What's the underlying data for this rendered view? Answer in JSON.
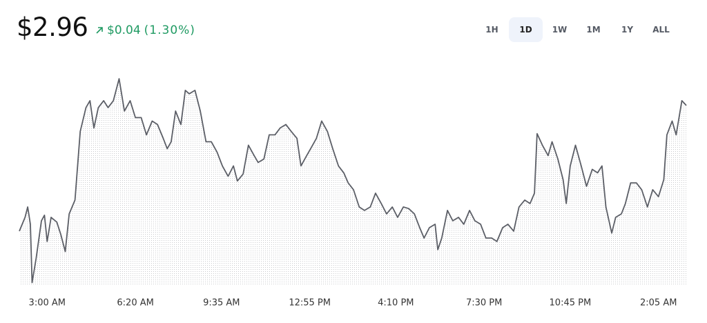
{
  "header": {
    "price": "$2.96",
    "change": "$0.04",
    "change_pct": "(1.30%)"
  },
  "range_tabs": {
    "options": [
      "1H",
      "1D",
      "1W",
      "1M",
      "1Y",
      "ALL"
    ],
    "selected": 1
  },
  "chart_data": {
    "type": "line",
    "color": "#5b5e66",
    "fill": "#c9cacd",
    "xlim": [
      -63,
      1448
    ],
    "ylim": [
      2.9025,
      2.9705
    ],
    "xticks": [
      {
        "value": 0,
        "label": "3:00 AM"
      },
      {
        "value": 200,
        "label": "6:20 AM"
      },
      {
        "value": 395,
        "label": "9:35 AM"
      },
      {
        "value": 595,
        "label": "12:55 PM"
      },
      {
        "value": 790,
        "label": "4:10 PM"
      },
      {
        "value": 990,
        "label": "7:30 PM"
      },
      {
        "value": 1185,
        "label": "10:45 PM"
      },
      {
        "value": 1385,
        "label": "2:05 AM"
      }
    ],
    "x": [
      -63,
      -50,
      -44,
      -38,
      -34,
      -25,
      -13,
      -6,
      0,
      9,
      22,
      31,
      41,
      50,
      63,
      75,
      88,
      97,
      106,
      116,
      128,
      138,
      150,
      163,
      175,
      188,
      200,
      213,
      225,
      238,
      250,
      263,
      272,
      281,
      291,
      303,
      313,
      322,
      335,
      347,
      360,
      372,
      385,
      397,
      410,
      422,
      431,
      444,
      456,
      469,
      478,
      491,
      503,
      516,
      528,
      541,
      553,
      566,
      575,
      588,
      597,
      610,
      622,
      635,
      647,
      660,
      672,
      682,
      694,
      707,
      719,
      732,
      744,
      757,
      769,
      782,
      794,
      807,
      819,
      832,
      844,
      854,
      866,
      879,
      885,
      894,
      907,
      919,
      932,
      944,
      957,
      969,
      982,
      994,
      1007,
      1019,
      1032,
      1044,
      1057,
      1069,
      1082,
      1094,
      1104,
      1110,
      1122,
      1135,
      1144,
      1157,
      1169,
      1176,
      1185,
      1197,
      1210,
      1222,
      1235,
      1247,
      1257,
      1266,
      1279,
      1288,
      1301,
      1310,
      1322,
      1335,
      1347,
      1360,
      1372,
      1385,
      1397,
      1404,
      1416,
      1425,
      1438,
      1448
    ],
    "values": [
      2.9199,
      2.9243,
      2.9276,
      2.9221,
      2.9035,
      2.9112,
      2.9232,
      2.925,
      2.9166,
      2.9243,
      2.9228,
      2.9188,
      2.9134,
      2.9254,
      2.9298,
      2.9517,
      2.9593,
      2.9615,
      2.9528,
      2.9593,
      2.9615,
      2.9593,
      2.9615,
      2.9685,
      2.9582,
      2.9615,
      2.9561,
      2.9561,
      2.9506,
      2.955,
      2.9539,
      2.9495,
      2.9462,
      2.9484,
      2.9582,
      2.9539,
      2.9648,
      2.9637,
      2.9648,
      2.9582,
      2.9484,
      2.9484,
      2.9451,
      2.9407,
      2.9374,
      2.9407,
      2.9359,
      2.9381,
      2.9473,
      2.944,
      2.9418,
      2.9429,
      2.9506,
      2.9506,
      2.9528,
      2.9539,
      2.9517,
      2.9495,
      2.9407,
      2.944,
      2.9462,
      2.9495,
      2.955,
      2.9517,
      2.9462,
      2.9407,
      2.9385,
      2.9353,
      2.9331,
      2.9276,
      2.9265,
      2.9276,
      2.932,
      2.9287,
      2.9254,
      2.9276,
      2.9243,
      2.9276,
      2.9271,
      2.9254,
      2.921,
      2.9177,
      2.921,
      2.9221,
      2.914,
      2.9177,
      2.9265,
      2.9232,
      2.9243,
      2.9221,
      2.9265,
      2.9232,
      2.9221,
      2.9177,
      2.9177,
      2.9166,
      2.921,
      2.9221,
      2.9199,
      2.9276,
      2.9298,
      2.9287,
      2.932,
      2.951,
      2.9473,
      2.944,
      2.9484,
      2.9429,
      2.9363,
      2.9287,
      2.9407,
      2.9473,
      2.9407,
      2.9342,
      2.9396,
      2.9385,
      2.9407,
      2.9276,
      2.9193,
      2.9243,
      2.9254,
      2.9287,
      2.9353,
      2.9353,
      2.9331,
      2.9276,
      2.9331,
      2.9309,
      2.9363,
      2.9506,
      2.955,
      2.9506,
      2.9615,
      2.96
    ]
  }
}
